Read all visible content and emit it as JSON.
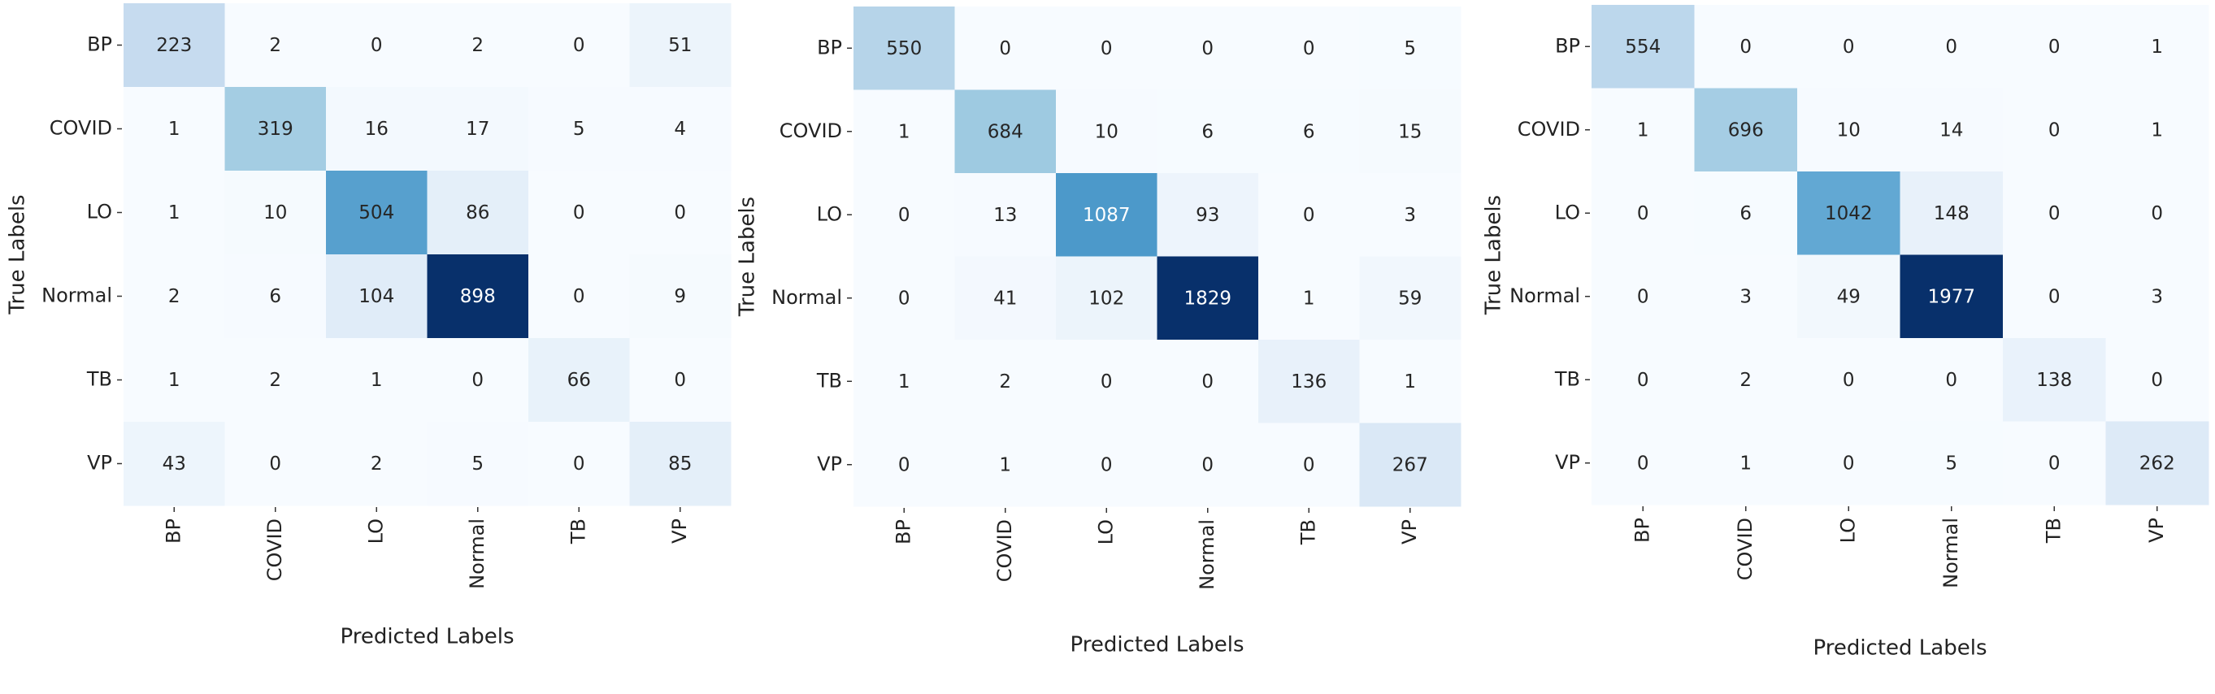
{
  "chart_data": [
    {
      "type": "heatmap",
      "xlabel": "Predicted Labels",
      "ylabel": "True Labels",
      "x_categories": [
        "BP",
        "COVID",
        "LO",
        "Normal",
        "TB",
        "VP"
      ],
      "y_categories": [
        "BP",
        "COVID",
        "LO",
        "Normal",
        "TB",
        "VP"
      ],
      "colormap": "Blues",
      "colorbar": false,
      "values": [
        [
          223,
          2,
          0,
          2,
          0,
          51
        ],
        [
          1,
          319,
          16,
          17,
          5,
          4
        ],
        [
          1,
          10,
          504,
          86,
          0,
          0
        ],
        [
          2,
          6,
          104,
          898,
          0,
          9
        ],
        [
          1,
          2,
          1,
          0,
          66,
          0
        ],
        [
          43,
          0,
          2,
          5,
          0,
          85
        ]
      ]
    },
    {
      "type": "heatmap",
      "xlabel": "Predicted Labels",
      "ylabel": "True Labels",
      "x_categories": [
        "BP",
        "COVID",
        "LO",
        "Normal",
        "TB",
        "VP"
      ],
      "y_categories": [
        "BP",
        "COVID",
        "LO",
        "Normal",
        "TB",
        "VP"
      ],
      "colormap": "Blues",
      "colorbar": false,
      "values": [
        [
          550,
          0,
          0,
          0,
          0,
          5
        ],
        [
          1,
          684,
          10,
          6,
          6,
          15
        ],
        [
          0,
          13,
          1087,
          93,
          0,
          3
        ],
        [
          0,
          41,
          102,
          1829,
          1,
          59
        ],
        [
          1,
          2,
          0,
          0,
          136,
          1
        ],
        [
          0,
          1,
          0,
          0,
          0,
          267
        ]
      ]
    },
    {
      "type": "heatmap",
      "xlabel": "Predicted Labels",
      "ylabel": "True Labels",
      "x_categories": [
        "BP",
        "COVID",
        "LO",
        "Normal",
        "TB",
        "VP"
      ],
      "y_categories": [
        "BP",
        "COVID",
        "LO",
        "Normal",
        "TB",
        "VP"
      ],
      "colormap": "Blues",
      "colorbar": false,
      "values": [
        [
          554,
          0,
          0,
          0,
          0,
          1
        ],
        [
          1,
          696,
          10,
          14,
          0,
          1
        ],
        [
          0,
          6,
          1042,
          148,
          0,
          0
        ],
        [
          0,
          3,
          49,
          1977,
          0,
          3
        ],
        [
          0,
          2,
          0,
          0,
          138,
          0
        ],
        [
          0,
          1,
          0,
          5,
          0,
          262
        ]
      ]
    }
  ]
}
